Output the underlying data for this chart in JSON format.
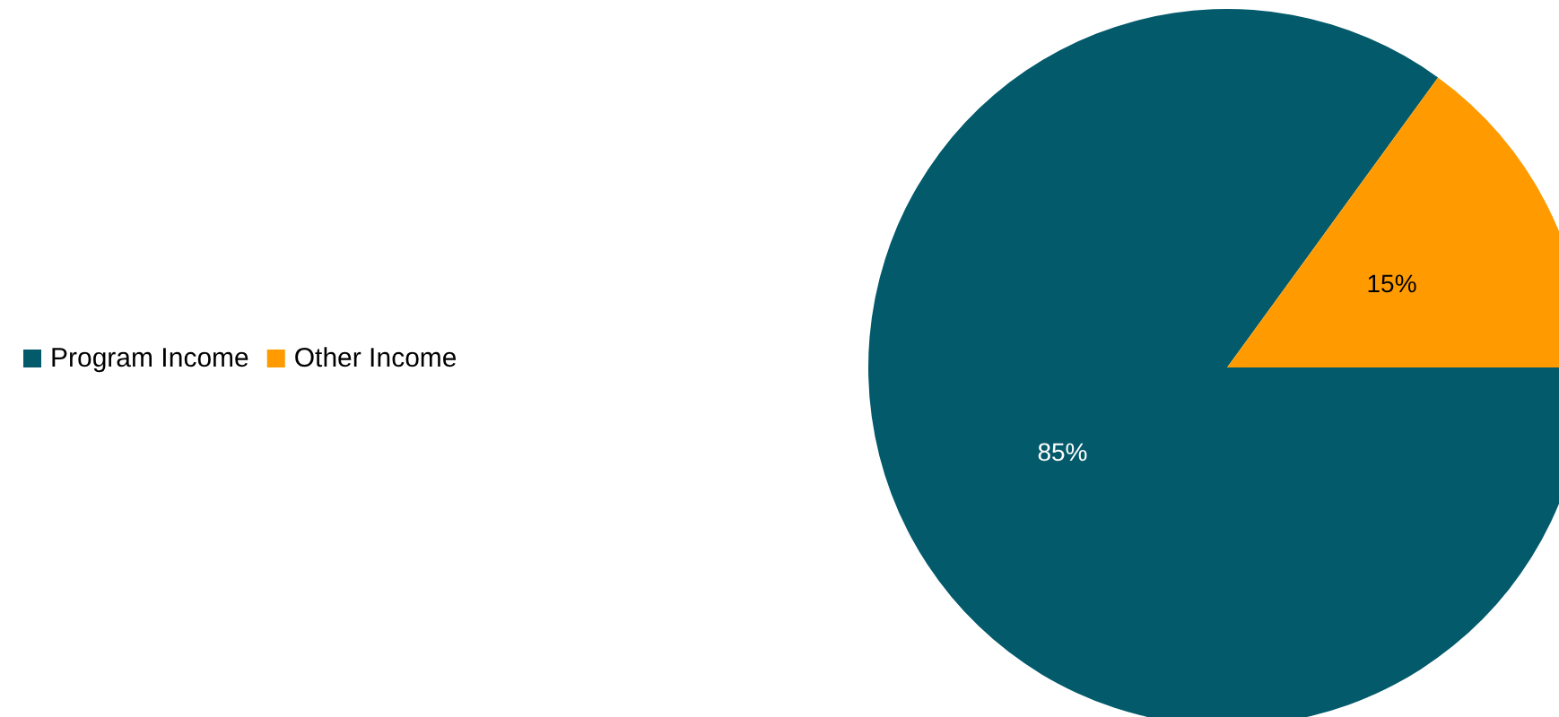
{
  "chart_data": {
    "type": "pie",
    "categories": [
      "Program Income",
      "Other Income"
    ],
    "values": [
      85,
      15
    ],
    "colors": [
      "#035a6b",
      "#ff9b00"
    ],
    "value_labels": [
      "85%",
      "15%"
    ],
    "legend": "left"
  }
}
